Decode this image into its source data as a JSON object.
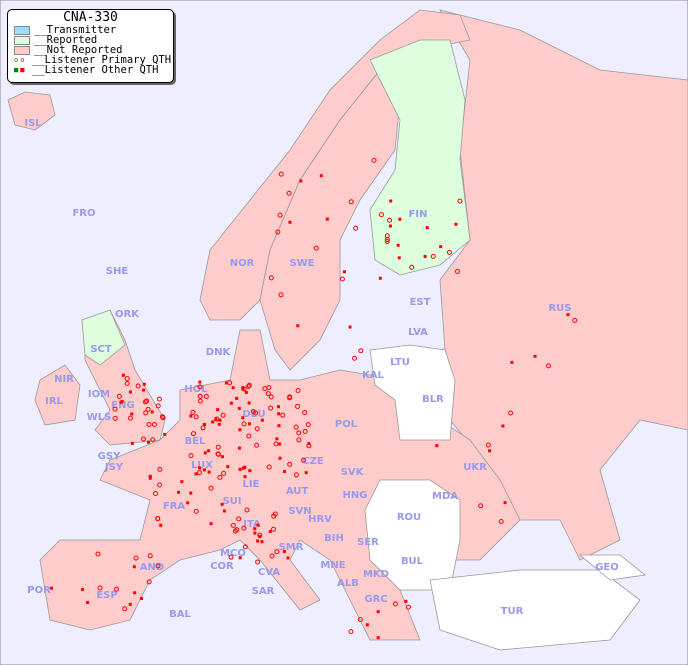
{
  "legend": {
    "title": "CNA-330",
    "items": [
      {
        "label": "__Transmitter",
        "color": "#99ddff"
      },
      {
        "label": "__Reported",
        "color": "#ddffdd"
      },
      {
        "label": "__Not Reported",
        "color": "#ffcccc"
      },
      {
        "label": "__Listener Primary QTH",
        "marker": "circle"
      },
      {
        "label": "__Listener Other QTH",
        "marker": "square"
      }
    ]
  },
  "colors": {
    "sea": "#eeeeff",
    "not_reported": "#ffcccc",
    "reported": "#ddffdd",
    "no_data": "#ffffff",
    "listener": "#ff0000",
    "label": "#9999ee"
  },
  "countries": [
    "ISL",
    "FRO",
    "SHE",
    "ORK",
    "NOR",
    "SWE",
    "FIN",
    "RUS",
    "EST",
    "LVA",
    "LTU",
    "KAL",
    "BLR",
    "DNK",
    "HOL",
    "DEU",
    "POL",
    "UKR",
    "IRL",
    "SCT",
    "NIR",
    "IOM",
    "WLS",
    "ENG",
    "GSY",
    "JSY",
    "BEL",
    "LUX",
    "CZE",
    "SVK",
    "MDA",
    "FRA",
    "SUI",
    "LIE",
    "AUT",
    "HNG",
    "SVN",
    "HRV",
    "ROU",
    "ITA",
    "BIH",
    "SER",
    "MCO",
    "SMR",
    "BUL",
    "AND",
    "COR",
    "CVA",
    "MNE",
    "MKD",
    "ALB",
    "GEO",
    "POR",
    "ESP",
    "SAR",
    "GRC",
    "TUR",
    "BAL"
  ]
}
